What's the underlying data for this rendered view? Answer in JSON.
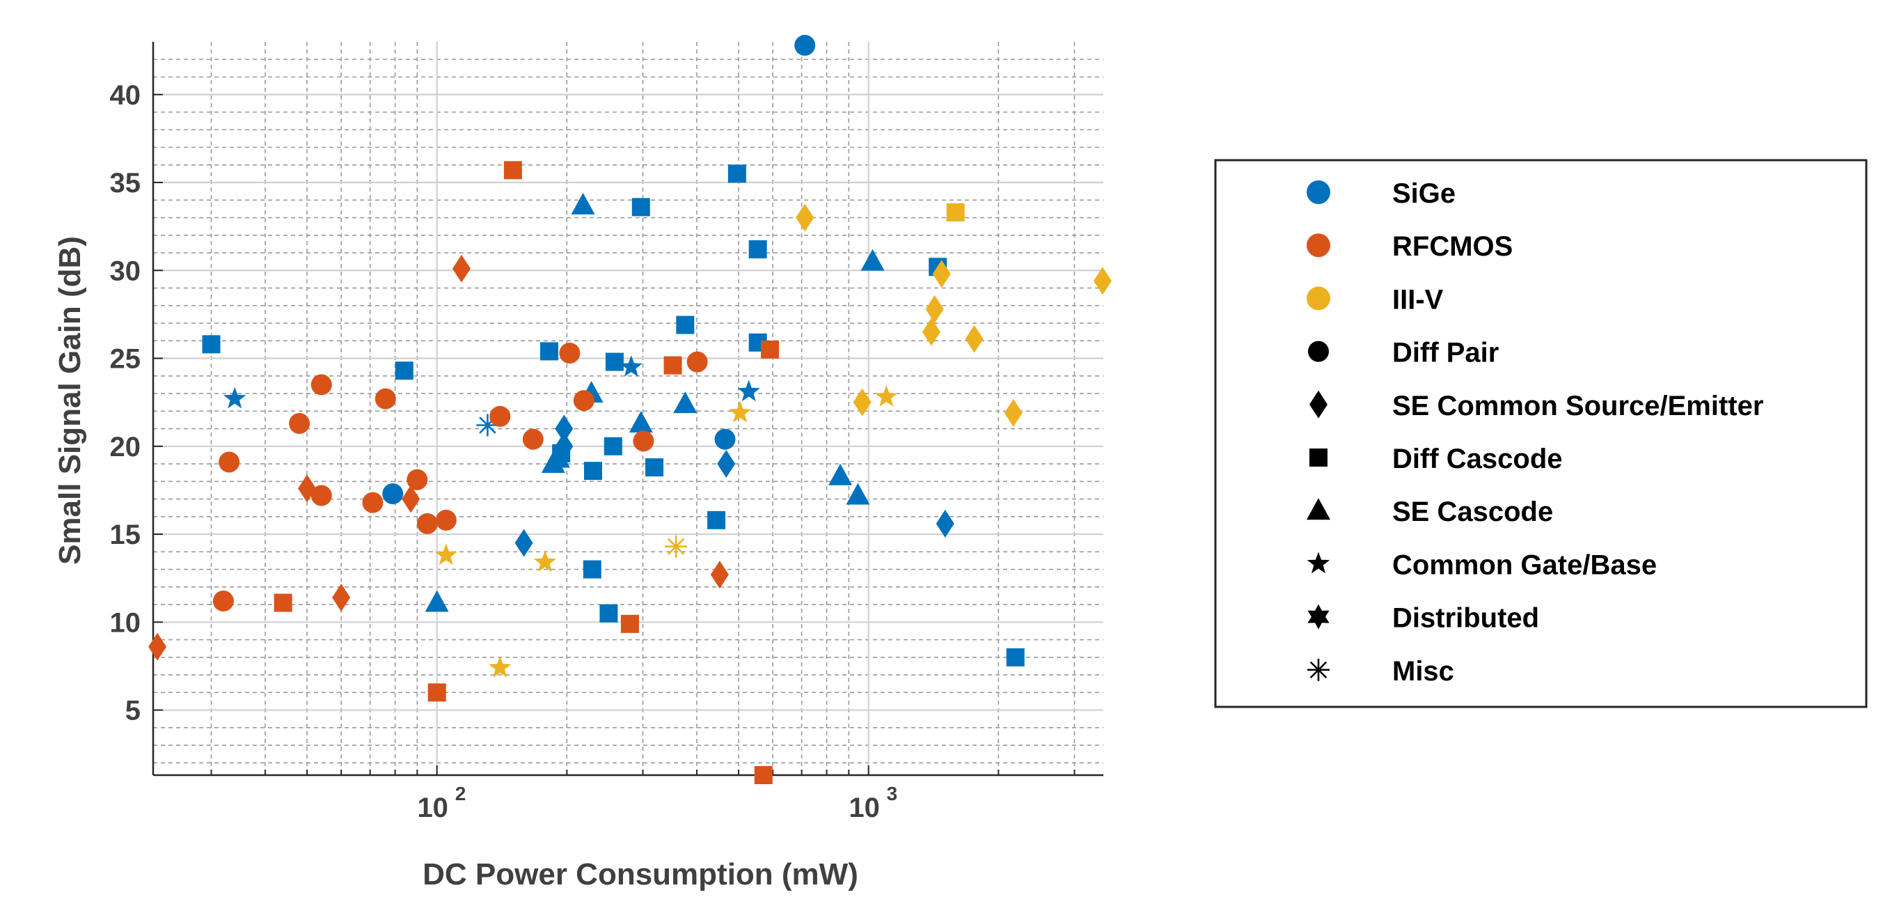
{
  "chart_data": {
    "type": "scatter",
    "title": "",
    "xlabel": "DC Power Consumption (mW)",
    "ylabel": "Small Signal Gain (dB)",
    "xscale": "log",
    "xlim": [
      22,
      3500
    ],
    "ylim": [
      1.3,
      43
    ],
    "grid": true,
    "x_ticks": [
      {
        "value": 100,
        "base": "10",
        "exp": "2"
      },
      {
        "value": 1000,
        "base": "10",
        "exp": "3"
      }
    ],
    "y_ticks": [
      5,
      10,
      15,
      20,
      25,
      30,
      35,
      40
    ],
    "legend_position": "right",
    "colors": {
      "SiGe": "#0072BD",
      "RFCMOS": "#D95319",
      "III-V": "#EDB120",
      "axis": "#262626",
      "tick_text": "#404040"
    },
    "legend": [
      {
        "label": "SiGe",
        "kind": "color",
        "color": "#0072BD",
        "marker": "circle"
      },
      {
        "label": "RFCMOS",
        "kind": "color",
        "color": "#D95319",
        "marker": "circle"
      },
      {
        "label": "III-V",
        "kind": "color",
        "color": "#EDB120",
        "marker": "circle"
      },
      {
        "label": "Diff Pair",
        "kind": "shape",
        "color": "#000000",
        "marker": "circle"
      },
      {
        "label": "SE Common Source/Emitter",
        "kind": "shape",
        "color": "#000000",
        "marker": "diamond"
      },
      {
        "label": "Diff Cascode",
        "kind": "shape",
        "color": "#000000",
        "marker": "square"
      },
      {
        "label": "SE Cascode",
        "kind": "shape",
        "color": "#000000",
        "marker": "triangle"
      },
      {
        "label": "Common Gate/Base",
        "kind": "shape",
        "color": "#000000",
        "marker": "pentagram"
      },
      {
        "label": "Distributed",
        "kind": "shape",
        "color": "#000000",
        "marker": "hexagram"
      },
      {
        "label": "Misc",
        "kind": "shape",
        "color": "#000000",
        "marker": "asterisk"
      }
    ],
    "series": [
      {
        "name": "SiGe",
        "color": "#0072BD",
        "points": [
          {
            "x": 712,
            "y": 42.8,
            "marker": "circle"
          },
          {
            "x": 79,
            "y": 17.3,
            "marker": "circle"
          },
          {
            "x": 465,
            "y": 20.4,
            "marker": "circle"
          },
          {
            "x": 30,
            "y": 25.8,
            "marker": "square"
          },
          {
            "x": 84,
            "y": 24.3,
            "marker": "square"
          },
          {
            "x": 182,
            "y": 25.4,
            "marker": "square"
          },
          {
            "x": 194,
            "y": 19.6,
            "marker": "square"
          },
          {
            "x": 229,
            "y": 13.0,
            "marker": "square"
          },
          {
            "x": 230,
            "y": 18.6,
            "marker": "square"
          },
          {
            "x": 250,
            "y": 10.5,
            "marker": "square"
          },
          {
            "x": 256,
            "y": 20.0,
            "marker": "square"
          },
          {
            "x": 258,
            "y": 24.8,
            "marker": "square"
          },
          {
            "x": 297,
            "y": 33.6,
            "marker": "square"
          },
          {
            "x": 319,
            "y": 18.8,
            "marker": "square"
          },
          {
            "x": 376,
            "y": 26.9,
            "marker": "square"
          },
          {
            "x": 444,
            "y": 15.8,
            "marker": "square"
          },
          {
            "x": 496,
            "y": 35.5,
            "marker": "square"
          },
          {
            "x": 554,
            "y": 31.2,
            "marker": "square"
          },
          {
            "x": 554,
            "y": 25.9,
            "marker": "square"
          },
          {
            "x": 1447,
            "y": 30.2,
            "marker": "square"
          },
          {
            "x": 2190,
            "y": 8.0,
            "marker": "square"
          },
          {
            "x": 159,
            "y": 14.5,
            "marker": "diamond"
          },
          {
            "x": 197,
            "y": 21.0,
            "marker": "diamond"
          },
          {
            "x": 197,
            "y": 20.0,
            "marker": "diamond"
          },
          {
            "x": 468,
            "y": 19.0,
            "marker": "diamond"
          },
          {
            "x": 1505,
            "y": 15.6,
            "marker": "diamond"
          },
          {
            "x": 100,
            "y": 11.1,
            "marker": "triangle"
          },
          {
            "x": 186,
            "y": 19.0,
            "marker": "triangle"
          },
          {
            "x": 191,
            "y": 19.3,
            "marker": "triangle"
          },
          {
            "x": 218,
            "y": 33.7,
            "marker": "triangle"
          },
          {
            "x": 228,
            "y": 23.0,
            "marker": "triangle"
          },
          {
            "x": 297,
            "y": 21.3,
            "marker": "triangle"
          },
          {
            "x": 376,
            "y": 22.4,
            "marker": "triangle"
          },
          {
            "x": 860,
            "y": 18.3,
            "marker": "triangle"
          },
          {
            "x": 945,
            "y": 17.2,
            "marker": "triangle"
          },
          {
            "x": 1022,
            "y": 30.5,
            "marker": "triangle"
          },
          {
            "x": 34,
            "y": 22.7,
            "marker": "pentagram"
          },
          {
            "x": 282,
            "y": 24.5,
            "marker": "pentagram"
          },
          {
            "x": 528,
            "y": 23.1,
            "marker": "pentagram"
          },
          {
            "x": 131,
            "y": 21.2,
            "marker": "asterisk"
          }
        ]
      },
      {
        "name": "RFCMOS",
        "color": "#D95319",
        "points": [
          {
            "x": 32,
            "y": 11.2,
            "marker": "circle"
          },
          {
            "x": 33,
            "y": 19.1,
            "marker": "circle"
          },
          {
            "x": 48,
            "y": 21.3,
            "marker": "circle"
          },
          {
            "x": 54,
            "y": 23.5,
            "marker": "circle"
          },
          {
            "x": 54,
            "y": 17.2,
            "marker": "circle"
          },
          {
            "x": 71,
            "y": 16.8,
            "marker": "circle"
          },
          {
            "x": 76,
            "y": 22.7,
            "marker": "circle"
          },
          {
            "x": 90,
            "y": 18.1,
            "marker": "circle"
          },
          {
            "x": 95,
            "y": 15.6,
            "marker": "circle"
          },
          {
            "x": 105,
            "y": 15.8,
            "marker": "circle"
          },
          {
            "x": 140,
            "y": 21.7,
            "marker": "circle"
          },
          {
            "x": 167,
            "y": 20.4,
            "marker": "circle"
          },
          {
            "x": 203,
            "y": 25.3,
            "marker": "circle"
          },
          {
            "x": 219,
            "y": 22.6,
            "marker": "circle"
          },
          {
            "x": 301,
            "y": 20.3,
            "marker": "circle"
          },
          {
            "x": 401,
            "y": 24.8,
            "marker": "circle"
          },
          {
            "x": 22.5,
            "y": 8.6,
            "marker": "diamond"
          },
          {
            "x": 50,
            "y": 17.6,
            "marker": "diamond"
          },
          {
            "x": 60,
            "y": 11.4,
            "marker": "diamond"
          },
          {
            "x": 87,
            "y": 17.0,
            "marker": "diamond"
          },
          {
            "x": 114,
            "y": 30.1,
            "marker": "diamond"
          },
          {
            "x": 452,
            "y": 12.7,
            "marker": "diamond"
          },
          {
            "x": 44,
            "y": 11.1,
            "marker": "square"
          },
          {
            "x": 100,
            "y": 6.0,
            "marker": "square"
          },
          {
            "x": 150,
            "y": 35.7,
            "marker": "square"
          },
          {
            "x": 280,
            "y": 9.9,
            "marker": "square"
          },
          {
            "x": 352,
            "y": 24.6,
            "marker": "square"
          },
          {
            "x": 571,
            "y": 1.3,
            "marker": "square"
          },
          {
            "x": 591,
            "y": 25.5,
            "marker": "square"
          }
        ]
      },
      {
        "name": "III-V",
        "color": "#EDB120",
        "points": [
          {
            "x": 712,
            "y": 33.0,
            "marker": "diamond"
          },
          {
            "x": 967,
            "y": 22.5,
            "marker": "diamond"
          },
          {
            "x": 1398,
            "y": 26.5,
            "marker": "diamond"
          },
          {
            "x": 1423,
            "y": 27.8,
            "marker": "diamond"
          },
          {
            "x": 1477,
            "y": 29.8,
            "marker": "diamond"
          },
          {
            "x": 1758,
            "y": 26.1,
            "marker": "diamond"
          },
          {
            "x": 2166,
            "y": 21.9,
            "marker": "diamond"
          },
          {
            "x": 3486,
            "y": 29.4,
            "marker": "diamond"
          },
          {
            "x": 1591,
            "y": 33.3,
            "marker": "square"
          },
          {
            "x": 105,
            "y": 13.8,
            "marker": "pentagram"
          },
          {
            "x": 140,
            "y": 7.4,
            "marker": "pentagram"
          },
          {
            "x": 178,
            "y": 13.4,
            "marker": "pentagram"
          },
          {
            "x": 504,
            "y": 21.9,
            "marker": "pentagram"
          },
          {
            "x": 1100,
            "y": 22.8,
            "marker": "pentagram"
          },
          {
            "x": 358,
            "y": 14.3,
            "marker": "asterisk"
          }
        ]
      }
    ]
  }
}
